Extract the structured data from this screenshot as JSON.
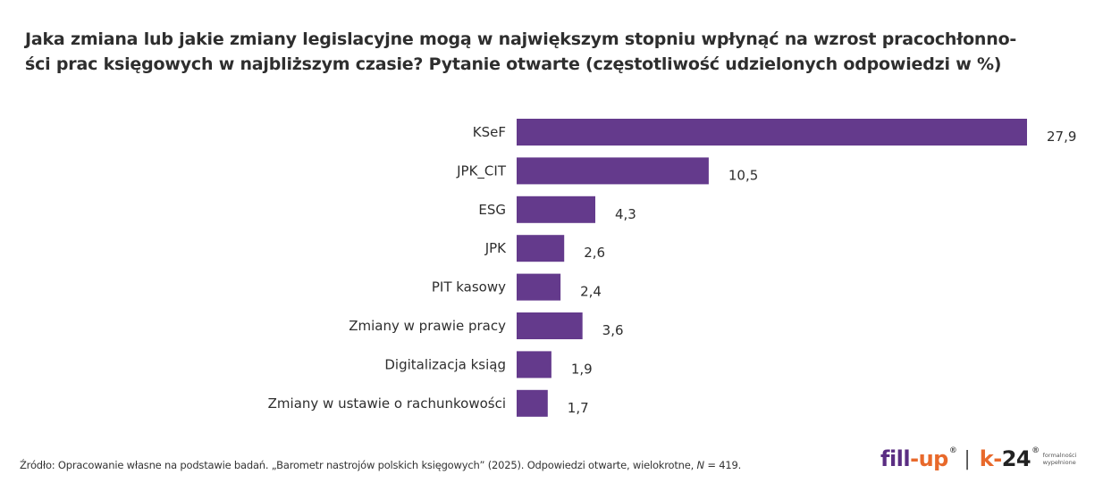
{
  "chart_data": {
    "type": "bar",
    "orientation": "horizontal",
    "title_lines": [
      "Jaka zmiana lub jakie zmiany legislacyjne mogą w największym stopniu wpłynąć na wzrost pracochłonno-",
      "ści prac księgowych w najbliższym czasie? Pytanie otwarte (częstotliwość udzielonych odpowiedzi w %)"
    ],
    "categories": [
      "KSeF",
      "JPK_CIT",
      "ESG",
      "JPK",
      "PIT kasowy",
      "Zmiany w prawie pracy",
      "Digitalizacja ksiąg",
      "Zmiany w ustawie o rachunkowości"
    ],
    "values": [
      27.9,
      10.5,
      4.3,
      2.6,
      2.4,
      3.6,
      1.9,
      1.7
    ],
    "value_labels": [
      "27,9",
      "10,5",
      "4,3",
      "2,6",
      "2,4",
      "3,6",
      "1,9",
      "1,7"
    ],
    "xlabel": "",
    "ylabel": "",
    "xlim": [
      0,
      27.9
    ],
    "grid": false,
    "legend": "none",
    "bar_color": "#643a8c"
  },
  "footer": {
    "source_prefix": "Źródło: Opracowanie własne na podstawie badań. „Barometr nastrojów polskich księgowych” (2025). Odpowiedzi otwarte, wielokrotne, ",
    "source_n_symbol": "N",
    "source_suffix": " = 419."
  },
  "logos": {
    "fillup_a": "fill",
    "fillup_dash": "-",
    "fillup_b": "up",
    "reg_mark": "®",
    "separator": "|",
    "k24_k": "k",
    "k24_dash": "-",
    "k24_num": "24",
    "tagline_1": "formalności",
    "tagline_2": "wypełnione",
    "brand_purple": "#5a2d82",
    "brand_orange": "#e8692b"
  }
}
